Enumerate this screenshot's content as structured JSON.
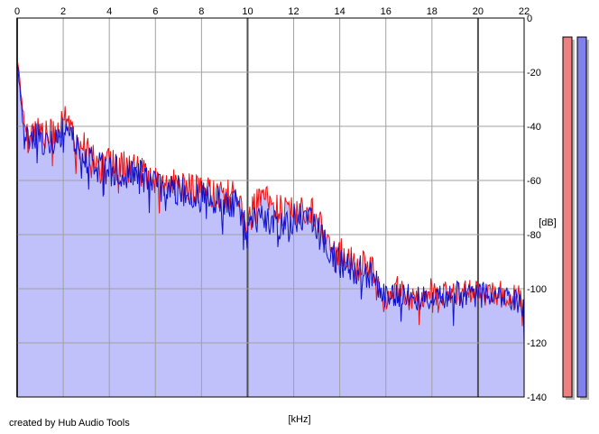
{
  "chart_data": {
    "type": "area",
    "title": "",
    "xlabel": "[kHz]",
    "ylabel": "[dB]",
    "xlim": [
      0,
      22
    ],
    "ylim": [
      -140,
      0
    ],
    "x_ticks": [
      "0",
      "2",
      "4",
      "6",
      "8",
      "10",
      "12",
      "14",
      "16",
      "18",
      "20",
      "22"
    ],
    "y_ticks": [
      "0",
      "-20",
      "-40",
      "-60",
      "-80",
      "-100",
      "-120",
      "-140"
    ],
    "grid": true,
    "legend": "none",
    "series": [
      {
        "color": "#ee1111",
        "x": [
          0,
          0.1,
          0.2,
          0.3,
          0.5,
          0.8,
          1,
          1.3,
          1.6,
          2,
          2.2,
          2.5,
          3,
          3.5,
          4,
          4.5,
          5,
          5.5,
          6,
          6.5,
          7,
          7.5,
          8,
          8.5,
          9,
          9.5,
          10,
          10.5,
          11,
          11.5,
          12,
          12.5,
          13,
          13.5,
          14,
          14.5,
          15,
          15.5,
          16,
          16.5,
          17,
          17.5,
          18,
          18.5,
          19,
          19.5,
          20,
          20.5,
          21,
          21.5,
          22
        ],
        "y": [
          -14,
          -22,
          -30,
          -38,
          -45,
          -40,
          -42,
          -44,
          -42,
          -38,
          -34,
          -45,
          -48,
          -52,
          -54,
          -55,
          -55,
          -58,
          -60,
          -61,
          -62,
          -63,
          -63,
          -64,
          -66,
          -65,
          -76,
          -66,
          -69,
          -71,
          -70,
          -71,
          -72,
          -83,
          -86,
          -90,
          -92,
          -94,
          -105,
          -100,
          -103,
          -102,
          -101,
          -102,
          -101,
          -102,
          -101,
          -102,
          -101,
          -103,
          -104
        ]
      },
      {
        "color": "#1111cc",
        "x": [
          0,
          0.1,
          0.2,
          0.3,
          0.5,
          0.8,
          1,
          1.3,
          1.6,
          2,
          2.2,
          2.5,
          3,
          3.5,
          4,
          4.5,
          5,
          5.5,
          6,
          6.5,
          7,
          7.5,
          8,
          8.5,
          9,
          9.5,
          10,
          10.5,
          11,
          11.5,
          12,
          12.5,
          13,
          13.5,
          14,
          14.5,
          15,
          15.5,
          16,
          16.5,
          17,
          17.5,
          18,
          18.5,
          19,
          19.5,
          20,
          20.5,
          21,
          21.5,
          22
        ],
        "y": [
          -16,
          -25,
          -34,
          -42,
          -48,
          -44,
          -44,
          -46,
          -44,
          -42,
          -40,
          -47,
          -52,
          -55,
          -56,
          -57,
          -57,
          -59,
          -61,
          -63,
          -64,
          -66,
          -66,
          -67,
          -69,
          -68,
          -80,
          -72,
          -75,
          -76,
          -74,
          -75,
          -76,
          -86,
          -90,
          -92,
          -94,
          -97,
          -103,
          -102,
          -103,
          -103,
          -102,
          -103,
          -102,
          -103,
          -102,
          -103,
          -102,
          -104,
          -108
        ]
      }
    ],
    "level_meters": [
      {
        "color": "#ee8080",
        "level": 0.99
      },
      {
        "color": "#8080ee",
        "level": 0.99
      }
    ]
  },
  "credit_text": "created by Hub Audio Tools",
  "colors": {
    "fill": "#c0c0fa",
    "grid": "#a0a0a0",
    "grid_major": "#505050",
    "axis": "#000000"
  }
}
